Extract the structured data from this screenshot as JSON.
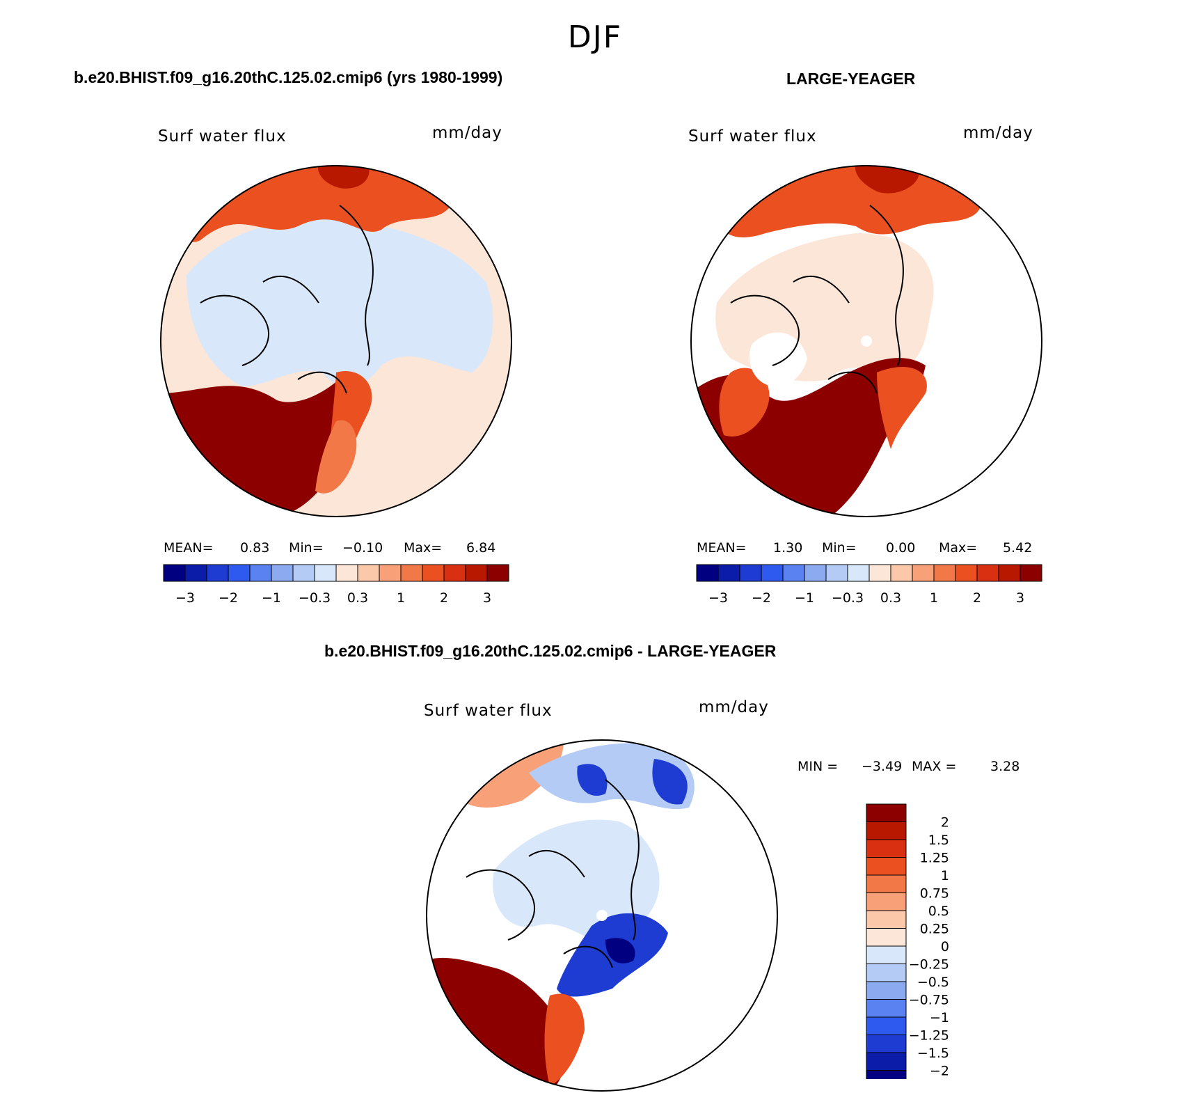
{
  "title": "DJF",
  "panels": [
    {
      "id": "case",
      "case_title": "b.e20.BHIST.f09_g16.20thC.125.02.cmip6 (yrs 1980-1999)",
      "variable": "Surf water flux",
      "units": "mm/day",
      "stats": {
        "mean_label": "MEAN=",
        "mean": "0.83",
        "min_label": "Min=",
        "min": "−0.10",
        "max_label": "Max=",
        "max": "6.84"
      },
      "colorbar_ticks": [
        "−3",
        "−2",
        "−1",
        "−0.3",
        "0.3",
        "1",
        "2",
        "3"
      ]
    },
    {
      "id": "obs",
      "case_title": "LARGE-YEAGER",
      "variable": "Surf water flux",
      "units": "mm/day",
      "stats": {
        "mean_label": "MEAN=",
        "mean": "1.30",
        "min_label": "Min=",
        "min": "0.00",
        "max_label": "Max=",
        "max": "5.42"
      },
      "colorbar_ticks": [
        "−3",
        "−2",
        "−1",
        "−0.3",
        "0.3",
        "1",
        "2",
        "3"
      ]
    },
    {
      "id": "diff",
      "case_title": "b.e20.BHIST.f09_g16.20thC.125.02.cmip6 - LARGE-YEAGER",
      "variable": "Surf water flux",
      "units": "mm/day",
      "stats": {
        "min_label": "MIN =",
        "min": "−3.49",
        "max_label": "MAX =",
        "max": "3.28"
      },
      "colorbar_ticks": [
        "2",
        "1.5",
        "1.25",
        "1",
        "0.75",
        "0.5",
        "0.25",
        "0",
        "−0.25",
        "−0.5",
        "−0.75",
        "−1",
        "−1.25",
        "−1.5",
        "−2"
      ]
    }
  ],
  "colors": {
    "scale16": [
      "#000080",
      "#0A1CA8",
      "#1E3CD2",
      "#2E5AF0",
      "#5A82F0",
      "#8CAAF0",
      "#B4CCF5",
      "#D8E8FA",
      "#FCE6D8",
      "#FCC8AA",
      "#F8A078",
      "#F27848",
      "#EA5020",
      "#D83010",
      "#B81800",
      "#8C0000"
    ],
    "diff": [
      "#8C0000",
      "#B81800",
      "#D83010",
      "#EA5020",
      "#F27848",
      "#F8A078",
      "#FCC8AA",
      "#FCE6D8",
      "#D8E8FA",
      "#B4CCF5",
      "#8CAAF0",
      "#5A82F0",
      "#2E5AF0",
      "#1E3CD2",
      "#0A1CA8",
      "#000080"
    ]
  }
}
